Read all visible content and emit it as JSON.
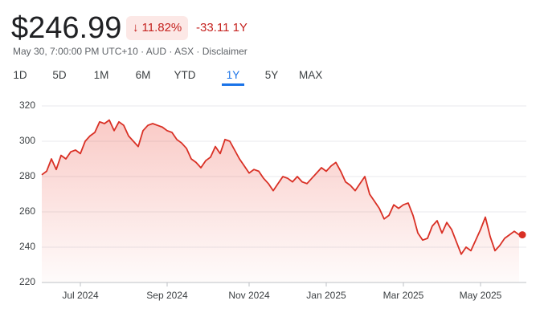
{
  "header": {
    "price": "$246.99",
    "change_percent": "11.82%",
    "direction": "down",
    "change": "-33.11 1Y",
    "subtitle": "May 30, 7:00:00 PM UTC+10 · AUD · ASX · Disclaimer"
  },
  "tabs": [
    {
      "label": "1D",
      "selected": false
    },
    {
      "label": "5D",
      "selected": false
    },
    {
      "label": "1M",
      "selected": false
    },
    {
      "label": "6M",
      "selected": false
    },
    {
      "label": "YTD",
      "selected": false
    },
    {
      "label": "1Y",
      "selected": true
    },
    {
      "label": "5Y",
      "selected": false
    },
    {
      "label": "MAX",
      "selected": false
    }
  ],
  "chart_data": {
    "type": "line",
    "color": "#d93025",
    "values": [
      281,
      283,
      290,
      284,
      292,
      290,
      294,
      295,
      293,
      300,
      303,
      305,
      311,
      310,
      312,
      306,
      311,
      309,
      303,
      300,
      297,
      306,
      309,
      310,
      309,
      308,
      306,
      305,
      301,
      299,
      296,
      290,
      288,
      285,
      289,
      291,
      297,
      293,
      301,
      300,
      295,
      290,
      286,
      282,
      284,
      283,
      279,
      276,
      272,
      276,
      280,
      279,
      277,
      280,
      277,
      276,
      279,
      282,
      285,
      283,
      286,
      288,
      283,
      277,
      275,
      272,
      276,
      280,
      270,
      266,
      262,
      256,
      258,
      264,
      262,
      264,
      265,
      258,
      248,
      244,
      245,
      252,
      255,
      248,
      254,
      250,
      243,
      236,
      240,
      238,
      244,
      250,
      257,
      246,
      238,
      241,
      245,
      247,
      249,
      247
    ],
    "xlim": [
      0,
      99
    ],
    "xticks": [
      {
        "value": 8,
        "label": "Jul 2024"
      },
      {
        "value": 26,
        "label": "Sep 2024"
      },
      {
        "value": 43,
        "label": "Nov 2024"
      },
      {
        "value": 59,
        "label": "Jan 2025"
      },
      {
        "value": 75,
        "label": "Mar 2025"
      },
      {
        "value": 91,
        "label": "May 2025"
      }
    ],
    "ylim": [
      220,
      320
    ],
    "yticks": [
      220,
      240,
      260,
      280,
      300,
      320
    ],
    "grid": true
  }
}
